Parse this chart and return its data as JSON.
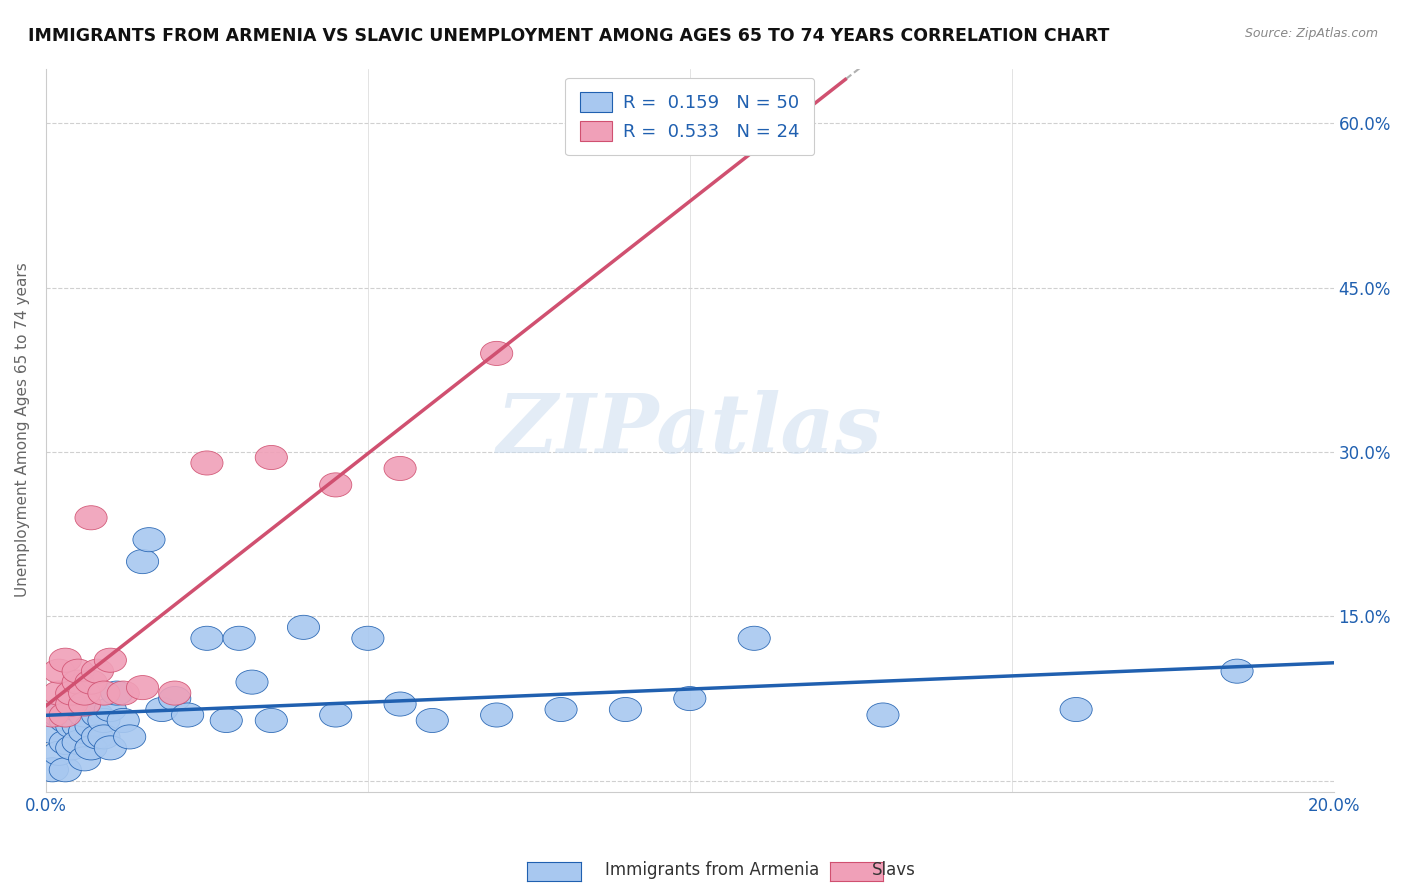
{
  "title": "IMMIGRANTS FROM ARMENIA VS SLAVIC UNEMPLOYMENT AMONG AGES 65 TO 74 YEARS CORRELATION CHART",
  "source": "Source: ZipAtlas.com",
  "ylabel": "Unemployment Among Ages 65 to 74 years",
  "xlim": [
    0.0,
    0.2
  ],
  "ylim": [
    -0.01,
    0.65
  ],
  "xtick_positions": [
    0.0,
    0.05,
    0.1,
    0.15,
    0.2
  ],
  "xtick_labels": [
    "0.0%",
    "",
    "",
    "",
    "20.0%"
  ],
  "ytick_positions": [
    0.0,
    0.15,
    0.3,
    0.45,
    0.6
  ],
  "ytick_labels": [
    "",
    "15.0%",
    "30.0%",
    "45.0%",
    "60.0%"
  ],
  "legend1_text": "R =  0.159   N = 50",
  "legend2_text": "R =  0.533   N = 24",
  "color_armenia": "#a8c8f0",
  "color_slavs": "#f0a0b8",
  "color_line_armenia": "#2060b0",
  "color_line_slavs": "#d05070",
  "color_dashed": "#b0b0b0",
  "background_color": "#ffffff",
  "watermark": "ZIPatlas",
  "armenia_x": [
    0.001,
    0.001,
    0.002,
    0.002,
    0.003,
    0.003,
    0.003,
    0.004,
    0.004,
    0.004,
    0.005,
    0.005,
    0.005,
    0.006,
    0.006,
    0.006,
    0.007,
    0.007,
    0.008,
    0.008,
    0.009,
    0.009,
    0.01,
    0.01,
    0.011,
    0.012,
    0.013,
    0.015,
    0.016,
    0.018,
    0.02,
    0.022,
    0.025,
    0.028,
    0.03,
    0.032,
    0.035,
    0.04,
    0.045,
    0.05,
    0.055,
    0.06,
    0.07,
    0.08,
    0.09,
    0.1,
    0.11,
    0.13,
    0.16,
    0.185
  ],
  "armenia_y": [
    0.045,
    0.01,
    0.06,
    0.025,
    0.055,
    0.035,
    0.01,
    0.07,
    0.03,
    0.05,
    0.05,
    0.035,
    0.065,
    0.045,
    0.02,
    0.06,
    0.05,
    0.03,
    0.06,
    0.04,
    0.055,
    0.04,
    0.065,
    0.03,
    0.08,
    0.055,
    0.04,
    0.2,
    0.22,
    0.065,
    0.075,
    0.06,
    0.13,
    0.055,
    0.13,
    0.09,
    0.055,
    0.14,
    0.06,
    0.13,
    0.07,
    0.055,
    0.06,
    0.065,
    0.065,
    0.075,
    0.13,
    0.06,
    0.065,
    0.1
  ],
  "slavs_x": [
    0.001,
    0.002,
    0.002,
    0.003,
    0.003,
    0.004,
    0.004,
    0.005,
    0.005,
    0.006,
    0.006,
    0.007,
    0.007,
    0.008,
    0.009,
    0.01,
    0.012,
    0.015,
    0.02,
    0.025,
    0.035,
    0.045,
    0.055,
    0.07
  ],
  "slavs_y": [
    0.06,
    0.08,
    0.1,
    0.06,
    0.11,
    0.07,
    0.08,
    0.09,
    0.1,
    0.07,
    0.08,
    0.09,
    0.24,
    0.1,
    0.08,
    0.11,
    0.08,
    0.085,
    0.08,
    0.29,
    0.295,
    0.27,
    0.285,
    0.39
  ],
  "line_armenia_x0": 0.0,
  "line_armenia_x1": 0.2,
  "line_armenia_y0": 0.068,
  "line_armenia_y1": 0.105,
  "line_slavs_x0": 0.0,
  "line_slavs_x1": 0.072,
  "line_slavs_y0": 0.025,
  "line_slavs_y1": 0.41,
  "line_dashed_x0": 0.07,
  "line_dashed_x1": 0.2,
  "line_dashed_y0": 0.38,
  "line_dashed_y1": 0.55
}
